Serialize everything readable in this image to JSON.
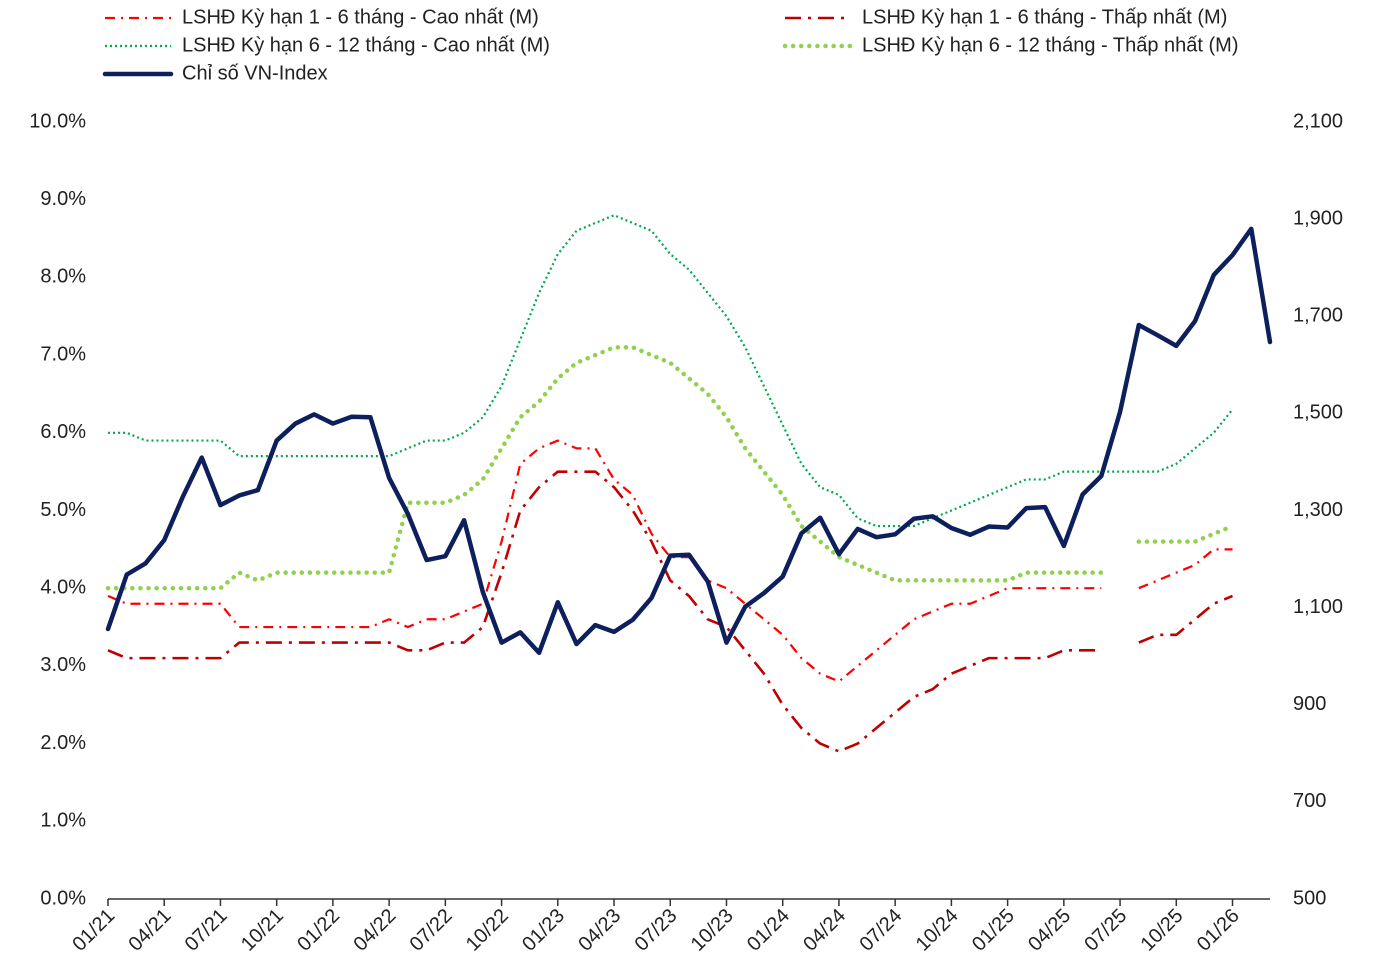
{
  "chart_data": {
    "type": "line",
    "categories": [
      "01/21",
      null,
      null,
      "04/21",
      null,
      null,
      "07/21",
      null,
      null,
      "10/21",
      null,
      null,
      "01/22",
      null,
      null,
      "04/22",
      null,
      null,
      "07/22",
      null,
      null,
      "10/22",
      null,
      null,
      "01/23",
      null,
      null,
      "04/23",
      null,
      null,
      "07/23",
      null,
      null,
      "10/23",
      null,
      null,
      "01/24",
      null,
      null,
      "04/24",
      null,
      null,
      "07/24",
      null,
      null,
      "10/24",
      null,
      null,
      "01/25",
      null,
      null,
      "04/25",
      null,
      null,
      "07/25",
      null,
      null,
      "10/25",
      null,
      null,
      "01/26",
      null,
      null
    ],
    "series": [
      {
        "name": "LSHĐ Kỳ hạn 1 - 6 tháng - Cao nhất (M)",
        "color": "#ff0000",
        "values": [
          3.9,
          3.8,
          3.8,
          3.8,
          3.8,
          3.8,
          3.8,
          3.5,
          3.5,
          3.5,
          3.5,
          3.5,
          3.5,
          3.5,
          3.5,
          3.6,
          3.5,
          3.6,
          3.6,
          3.7,
          3.8,
          4.6,
          5.6,
          5.8,
          5.9,
          5.8,
          5.8,
          5.4,
          5.2,
          4.7,
          4.4,
          4.4,
          4.1,
          4.0,
          3.8,
          3.6,
          3.4,
          3.1,
          2.9,
          2.8,
          3.0,
          3.2,
          3.4,
          3.6,
          3.7,
          3.8,
          3.8,
          3.9,
          4.0,
          4.0,
          4.0,
          4.0,
          4.0,
          4.0,
          null,
          4.0,
          4.1,
          4.2,
          4.3,
          4.5,
          4.5,
          null,
          null
        ]
      },
      {
        "name": "LSHĐ Kỳ hạn 1 - 6 tháng - Thấp nhất (M)",
        "color": "#c00000",
        "values": [
          3.2,
          3.1,
          3.1,
          3.1,
          3.1,
          3.1,
          3.1,
          3.3,
          3.3,
          3.3,
          3.3,
          3.3,
          3.3,
          3.3,
          3.3,
          3.3,
          3.2,
          3.2,
          3.3,
          3.3,
          3.5,
          4.2,
          5.0,
          5.3,
          5.5,
          5.5,
          5.5,
          5.3,
          5.0,
          4.6,
          4.1,
          3.9,
          3.6,
          3.5,
          3.2,
          2.9,
          2.5,
          2.2,
          2.0,
          1.9,
          2.0,
          2.2,
          2.4,
          2.6,
          2.7,
          2.9,
          3.0,
          3.1,
          3.1,
          3.1,
          3.1,
          3.2,
          3.2,
          3.2,
          null,
          3.3,
          3.4,
          3.4,
          3.6,
          3.8,
          3.9,
          null,
          null
        ]
      },
      {
        "name": "LSHĐ Kỳ hạn 6 - 12 tháng - Cao nhất (M)",
        "color": "#00a84f",
        "values": [
          6.0,
          6.0,
          5.9,
          5.9,
          5.9,
          5.9,
          5.9,
          5.7,
          5.7,
          5.7,
          5.7,
          5.7,
          5.7,
          5.7,
          5.7,
          5.7,
          5.8,
          5.9,
          5.9,
          6.0,
          6.2,
          6.6,
          7.2,
          7.8,
          8.3,
          8.6,
          8.7,
          8.8,
          8.7,
          8.6,
          8.3,
          8.1,
          7.8,
          7.5,
          7.1,
          6.6,
          6.1,
          5.6,
          5.3,
          5.2,
          4.9,
          4.8,
          4.8,
          4.8,
          4.9,
          5.0,
          5.1,
          5.2,
          5.3,
          5.4,
          5.4,
          5.5,
          5.5,
          5.5,
          5.5,
          5.5,
          5.5,
          5.6,
          5.8,
          6.0,
          6.3,
          null,
          null
        ]
      },
      {
        "name": "LSHĐ Kỳ hạn 6 - 12 tháng - Thấp nhất (M)",
        "color": "#92d050",
        "values": [
          4.0,
          4.0,
          4.0,
          4.0,
          4.0,
          4.0,
          4.0,
          4.2,
          4.1,
          4.2,
          4.2,
          4.2,
          4.2,
          4.2,
          4.2,
          4.2,
          5.1,
          5.1,
          5.1,
          5.2,
          5.4,
          5.8,
          6.2,
          6.4,
          6.7,
          6.9,
          7.0,
          7.1,
          7.1,
          7.0,
          6.9,
          6.7,
          6.5,
          6.2,
          5.8,
          5.5,
          5.2,
          4.8,
          4.6,
          4.4,
          4.3,
          4.2,
          4.1,
          4.1,
          4.1,
          4.1,
          4.1,
          4.1,
          4.1,
          4.2,
          4.2,
          4.2,
          4.2,
          4.2,
          null,
          4.6,
          4.6,
          4.6,
          4.6,
          4.7,
          4.8,
          null,
          null
        ]
      },
      {
        "name": "Chỉ số VN-Index",
        "color": "#0d1f5c",
        "axis": "y2",
        "values": [
          1056,
          1168,
          1191,
          1239,
          1329,
          1409,
          1311,
          1331,
          1342,
          1444,
          1479,
          1498,
          1479,
          1493,
          1492,
          1367,
          1293,
          1198,
          1206,
          1280,
          1132,
          1028,
          1049,
          1007,
          1111,
          1025,
          1064,
          1050,
          1075,
          1120,
          1207,
          1209,
          1154,
          1028,
          1102,
          1130,
          1164,
          1253,
          1285,
          1210,
          1262,
          1245,
          1251,
          1283,
          1288,
          1264,
          1250,
          1267,
          1265,
          1305,
          1307,
          1227,
          1333,
          1371,
          1503,
          1682,
          1661,
          1639,
          1690,
          1785,
          1826,
          1880,
          1647
        ]
      }
    ],
    "ylim": [
      0,
      10
    ],
    "yticks": [
      {
        "value": 0,
        "label": "0.0%"
      },
      {
        "value": 1,
        "label": "1.0%"
      },
      {
        "value": 2,
        "label": "2.0%"
      },
      {
        "value": 3,
        "label": "3.0%"
      },
      {
        "value": 4,
        "label": "4.0%"
      },
      {
        "value": 5,
        "label": "5.0%"
      },
      {
        "value": 6,
        "label": "6.0%"
      },
      {
        "value": 7,
        "label": "7.0%"
      },
      {
        "value": 8,
        "label": "8.0%"
      },
      {
        "value": 9,
        "label": "9.0%"
      },
      {
        "value": 10,
        "label": "10.0%"
      }
    ],
    "y2lim": [
      500,
      2100
    ],
    "y2ticks": [
      500,
      700,
      900,
      {
        "value": 1100,
        "label": "1,100"
      },
      {
        "value": 1300,
        "label": "1,300"
      },
      {
        "value": 1500,
        "label": "1,500"
      },
      {
        "value": 1700,
        "label": "1,700"
      },
      {
        "value": 1900,
        "label": "1,900"
      },
      {
        "value": 2100,
        "label": "2,100"
      }
    ],
    "grid": false,
    "legend": "top"
  }
}
